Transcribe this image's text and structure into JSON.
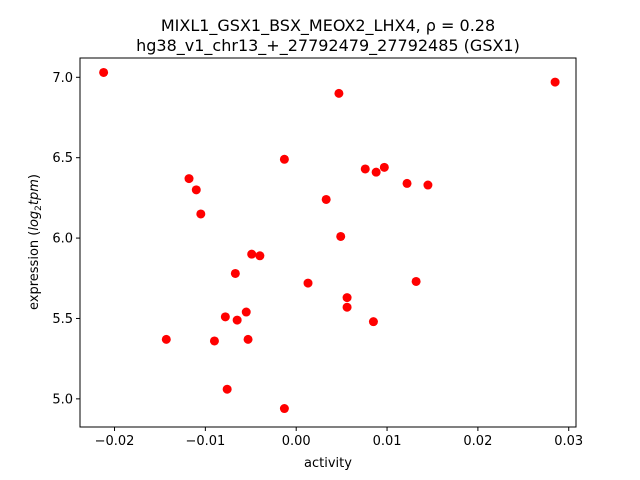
{
  "chart_data": {
    "type": "scatter",
    "title_line1": "MIXL1_GSX1_BSX_MEOX2_LHX4, ρ = 0.28",
    "title_line2": "hg38_v1_chr13_+_27792479_27792485 (GSX1)",
    "xlabel": "activity",
    "ylabel_prefix": "expression (",
    "ylabel_math": "log",
    "ylabel_sub": "2",
    "ylabel_math2": "tpm",
    "ylabel_suffix": ")",
    "xlim": [
      -0.0238,
      0.0308
    ],
    "ylim": [
      4.825,
      7.12
    ],
    "xticks": [
      -0.02,
      -0.01,
      0.0,
      0.01,
      0.02,
      0.03
    ],
    "xtick_labels": [
      "−0.02",
      "−0.01",
      "0.00",
      "0.01",
      "0.02",
      "0.03"
    ],
    "yticks": [
      5.0,
      5.5,
      6.0,
      6.5,
      7.0
    ],
    "ytick_labels": [
      "5.0",
      "5.5",
      "6.0",
      "6.5",
      "7.0"
    ],
    "point_color": "#ff0000",
    "grid": false,
    "points": [
      {
        "x": -0.0212,
        "y": 7.03
      },
      {
        "x": -0.0143,
        "y": 5.37
      },
      {
        "x": -0.0118,
        "y": 6.37
      },
      {
        "x": -0.011,
        "y": 6.3
      },
      {
        "x": -0.0105,
        "y": 6.15
      },
      {
        "x": -0.009,
        "y": 5.36
      },
      {
        "x": -0.0078,
        "y": 5.51
      },
      {
        "x": -0.0076,
        "y": 5.06
      },
      {
        "x": -0.0067,
        "y": 5.78
      },
      {
        "x": -0.0065,
        "y": 5.49
      },
      {
        "x": -0.0055,
        "y": 5.54
      },
      {
        "x": -0.0053,
        "y": 5.37
      },
      {
        "x": -0.0049,
        "y": 5.9
      },
      {
        "x": -0.004,
        "y": 5.89
      },
      {
        "x": -0.0013,
        "y": 6.49
      },
      {
        "x": -0.0013,
        "y": 4.94
      },
      {
        "x": 0.0013,
        "y": 5.72
      },
      {
        "x": 0.0033,
        "y": 6.24
      },
      {
        "x": 0.0047,
        "y": 6.9
      },
      {
        "x": 0.0049,
        "y": 6.01
      },
      {
        "x": 0.0056,
        "y": 5.63
      },
      {
        "x": 0.0056,
        "y": 5.57
      },
      {
        "x": 0.0076,
        "y": 6.43
      },
      {
        "x": 0.0085,
        "y": 5.48
      },
      {
        "x": 0.0088,
        "y": 6.41
      },
      {
        "x": 0.0097,
        "y": 6.44
      },
      {
        "x": 0.0122,
        "y": 6.34
      },
      {
        "x": 0.0132,
        "y": 5.73
      },
      {
        "x": 0.0145,
        "y": 6.33
      },
      {
        "x": 0.0285,
        "y": 6.97
      }
    ]
  }
}
